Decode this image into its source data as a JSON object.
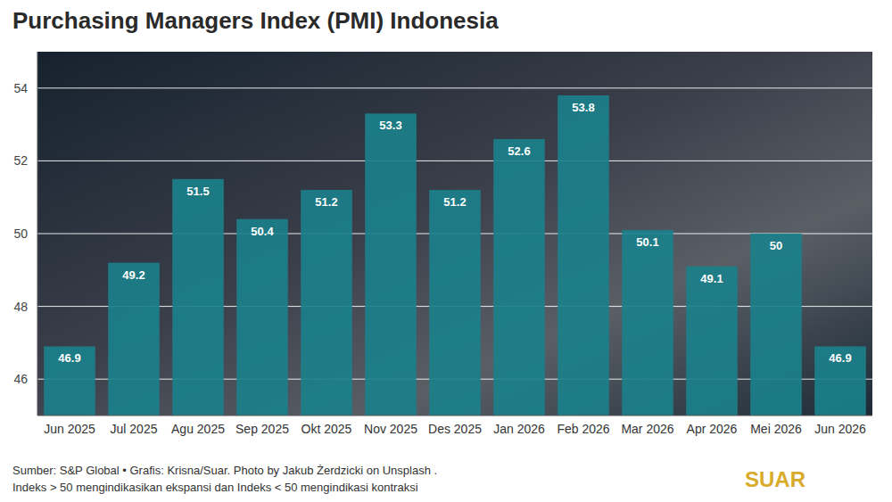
{
  "chart_data": {
    "type": "bar",
    "title": "Purchasing Managers Index (PMI) Indonesia",
    "categories": [
      "Jun 2025",
      "Jul 2025",
      "Agu 2025",
      "Sep 2025",
      "Okt 2025",
      "Nov 2025",
      "Des 2025",
      "Jan 2026",
      "Feb 2026",
      "Mar 2026",
      "Apr 2026",
      "Mei 2026",
      "Jun 2026"
    ],
    "values": [
      46.9,
      49.2,
      51.5,
      50.4,
      51.2,
      53.3,
      51.2,
      52.6,
      53.8,
      50.1,
      49.1,
      50,
      46.9
    ],
    "color": "#1b808b",
    "ylim": [
      45,
      55
    ],
    "yticks": [
      46,
      48,
      50,
      52,
      54
    ],
    "grid": true,
    "data_labels": true,
    "source": "Sumber: S&P Global • Grafis: Krisna/Suar. Photo by Jakub Żerdzicki on Unsplash .",
    "note": "Indeks > 50 mengindikasikan ekspansi dan Indeks < 50 mengindikasi kontraksi",
    "brand": "SUAR"
  }
}
